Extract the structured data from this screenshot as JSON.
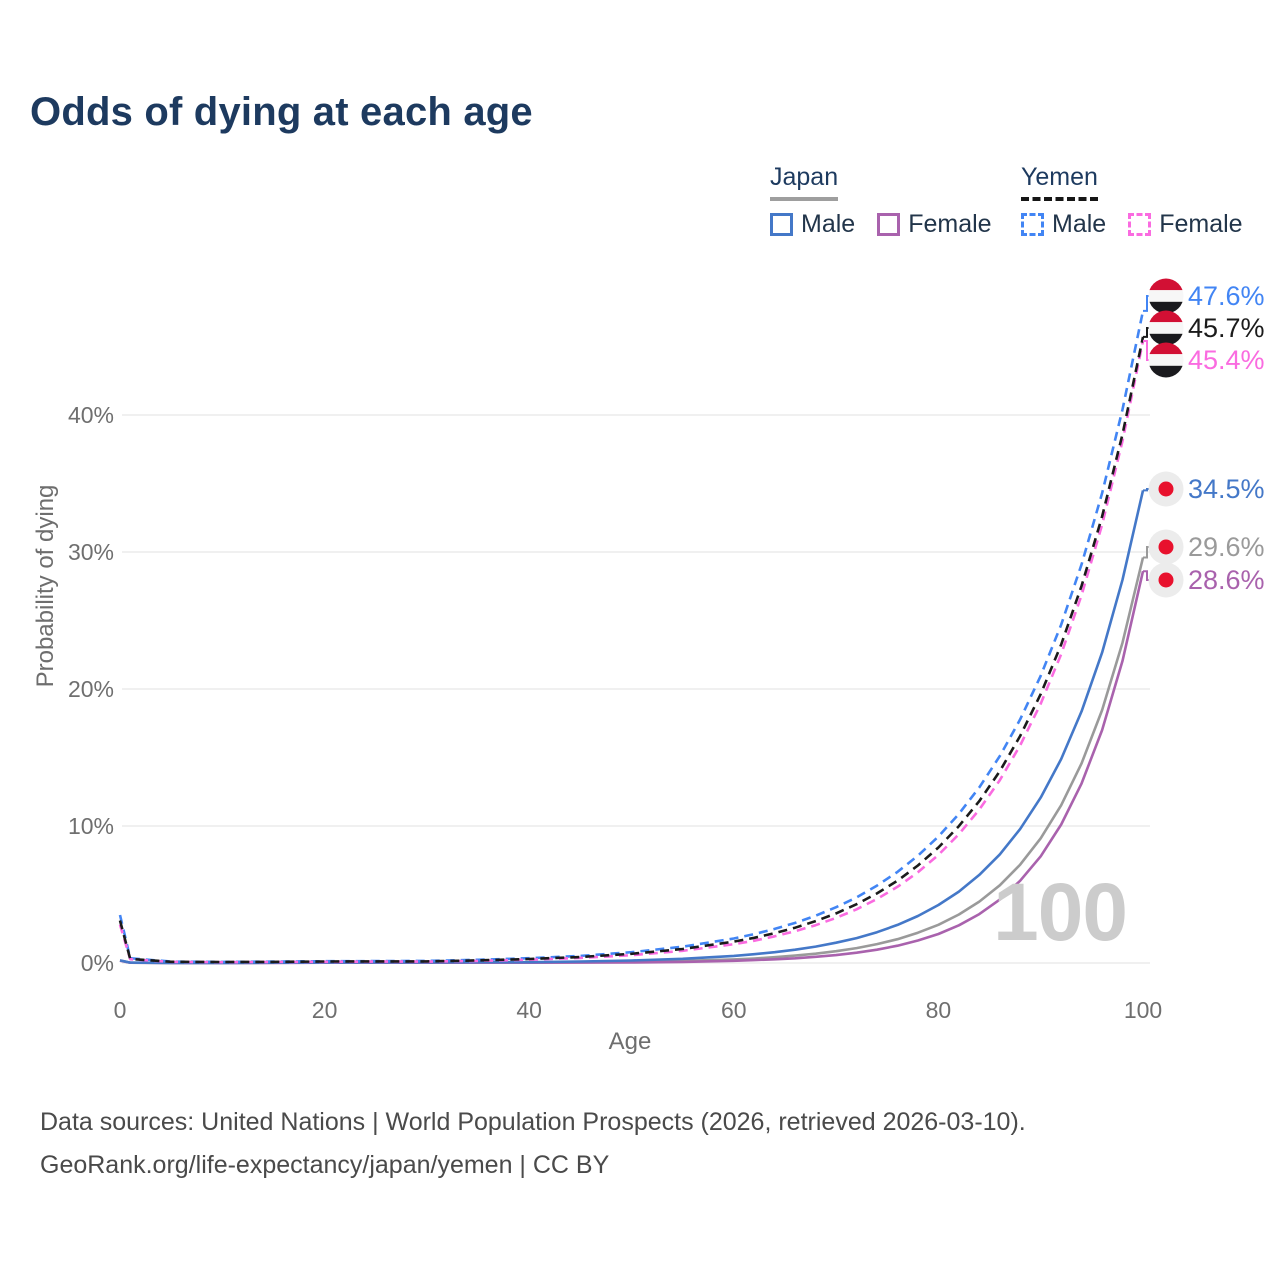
{
  "header": {
    "title": "Odds of dying at each age"
  },
  "legend": {
    "japan": {
      "label": "Japan",
      "male": "Male",
      "female": "Female"
    },
    "yemen": {
      "label": "Yemen",
      "male": "Male",
      "female": "Female"
    }
  },
  "axes": {
    "x_label": "Age",
    "y_label": "Probability of dying"
  },
  "chart_data": {
    "type": "line",
    "title": "Odds of dying at each age",
    "xlabel": "Age",
    "ylabel": "Probability of dying",
    "xlim": [
      0,
      100
    ],
    "ylim": [
      0,
      48
    ],
    "grid": "horizontal",
    "legend_position": "top-right",
    "age_indicator": "100",
    "xticks": [
      0,
      20,
      40,
      60,
      80,
      100
    ],
    "ytick_values": [
      0,
      10,
      20,
      30,
      40
    ],
    "ytick_labels": [
      "0%",
      "10%",
      "20%",
      "30%",
      "40%"
    ],
    "ages": [
      0,
      1,
      5,
      10,
      15,
      20,
      25,
      30,
      35,
      40,
      45,
      50,
      55,
      60,
      62,
      64,
      66,
      68,
      70,
      72,
      74,
      76,
      78,
      80,
      82,
      84,
      86,
      88,
      90,
      92,
      94,
      96,
      98,
      100
    ],
    "series": [
      {
        "id": "japan-combined",
        "country": "Japan",
        "sex": "combined",
        "dashed": false,
        "color": "#9a9a9a",
        "end_label": "29.6%",
        "end_value": 29.6,
        "values": [
          0.18,
          0.02,
          0.01,
          0.01,
          0.02,
          0.03,
          0.03,
          0.04,
          0.03,
          0.03,
          0.05,
          0.08,
          0.15,
          0.26,
          0.33,
          0.42,
          0.54,
          0.68,
          0.86,
          1.09,
          1.38,
          1.74,
          2.21,
          2.79,
          3.54,
          4.48,
          5.67,
          7.18,
          9.1,
          11.52,
          14.58,
          18.46,
          23.38,
          29.6
        ]
      },
      {
        "id": "japan-female",
        "country": "Japan",
        "sex": "female",
        "dashed": false,
        "color": "#a962ad",
        "end_label": "28.6%",
        "end_value": 28.6,
        "values": [
          0.17,
          0.02,
          0.01,
          0.01,
          0.01,
          0.02,
          0.02,
          0.02,
          0.02,
          0.02,
          0.03,
          0.04,
          0.08,
          0.16,
          0.21,
          0.27,
          0.34,
          0.45,
          0.58,
          0.75,
          0.97,
          1.26,
          1.64,
          2.12,
          2.75,
          3.57,
          4.63,
          6.01,
          7.79,
          10.11,
          13.11,
          17.0,
          22.05,
          28.6
        ]
      },
      {
        "id": "japan-male",
        "country": "Japan",
        "sex": "male",
        "dashed": false,
        "color": "#4478c8",
        "end_label": "34.5%",
        "end_value": 34.5,
        "values": [
          0.19,
          0.03,
          0.01,
          0.01,
          0.02,
          0.04,
          0.05,
          0.05,
          0.06,
          0.06,
          0.11,
          0.18,
          0.31,
          0.52,
          0.64,
          0.79,
          0.97,
          1.2,
          1.48,
          1.82,
          2.25,
          2.78,
          3.43,
          4.23,
          5.21,
          6.43,
          7.93,
          9.79,
          12.07,
          14.89,
          18.37,
          22.66,
          27.97,
          34.5
        ]
      },
      {
        "id": "yemen-male",
        "country": "Yemen",
        "sex": "male",
        "dashed": true,
        "color": "#4285f4",
        "end_label": "47.6%",
        "end_value": 47.6,
        "values": [
          3.5,
          0.35,
          0.1,
          0.08,
          0.1,
          0.13,
          0.14,
          0.15,
          0.23,
          0.35,
          0.52,
          0.79,
          1.19,
          1.79,
          2.11,
          2.49,
          2.93,
          3.45,
          4.07,
          4.79,
          5.65,
          6.65,
          7.83,
          9.23,
          10.88,
          12.82,
          15.1,
          17.79,
          20.96,
          24.7,
          29.1,
          34.29,
          40.4,
          47.6
        ]
      },
      {
        "id": "yemen-female",
        "country": "Yemen",
        "sex": "female",
        "dashed": true,
        "color": "#fa6be0",
        "end_label": "45.4%",
        "end_value": 45.4,
        "values": [
          2.8,
          0.28,
          0.08,
          0.06,
          0.07,
          0.09,
          0.1,
          0.1,
          0.15,
          0.24,
          0.37,
          0.57,
          0.89,
          1.37,
          1.63,
          1.95,
          2.32,
          2.76,
          3.29,
          3.92,
          4.67,
          5.56,
          6.62,
          7.89,
          9.4,
          11.2,
          13.34,
          15.89,
          18.93,
          22.55,
          26.86,
          31.99,
          38.11,
          45.4
        ]
      },
      {
        "id": "yemen-combined",
        "country": "Yemen",
        "sex": "combined",
        "dashed": true,
        "color": "#1b1b1b",
        "end_label": "45.7%",
        "end_value": 45.7,
        "values": [
          3.1,
          0.3,
          0.09,
          0.07,
          0.08,
          0.11,
          0.12,
          0.12,
          0.19,
          0.29,
          0.44,
          0.67,
          1.02,
          1.56,
          1.84,
          2.18,
          2.58,
          3.06,
          3.62,
          4.29,
          5.08,
          6.01,
          7.12,
          8.43,
          9.99,
          11.82,
          14.0,
          16.58,
          19.63,
          23.25,
          27.53,
          32.59,
          38.59,
          45.7
        ]
      }
    ],
    "flag_colors": {
      "yemen": {
        "red": "#d21034",
        "white": "#f7f7f7",
        "black": "#1a1a1e"
      },
      "japan": {
        "bg": "#ececec",
        "dot": "#e8112d"
      }
    },
    "grid_color": "#ececec",
    "tick_color": "#6f6f6f"
  },
  "footer": {
    "line1": "Data sources: United Nations | World Population Prospects (2026, retrieved 2026-03-10).",
    "line2": "GeoRank.org/life-expectancy/japan/yemen | CC BY"
  }
}
